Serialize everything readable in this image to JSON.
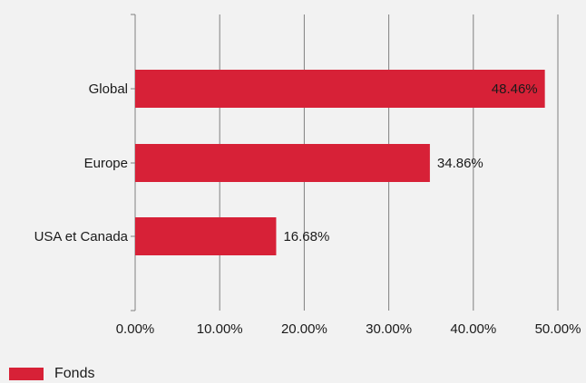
{
  "colors": {
    "background": "#f2f2f2",
    "bar": "#d72137",
    "grid": "#808080",
    "axis": "#808080",
    "text": "#1a1a1a"
  },
  "chart_data": {
    "type": "bar",
    "orientation": "horizontal",
    "categories": [
      "Global",
      "Europe",
      "USA et Canada"
    ],
    "series": [
      {
        "name": "Fonds",
        "values": [
          48.46,
          34.86,
          16.68
        ],
        "value_labels": [
          "48.46%",
          "34.86%",
          "16.68%"
        ]
      }
    ],
    "xlim": [
      0,
      50
    ],
    "x_ticks": [
      0,
      10,
      20,
      30,
      40,
      50
    ],
    "x_tick_labels": [
      "0.00%",
      "10.00%",
      "20.00%",
      "30.00%",
      "40.00%",
      "50.00%"
    ],
    "grid": true,
    "legend_position": "bottom-left"
  }
}
